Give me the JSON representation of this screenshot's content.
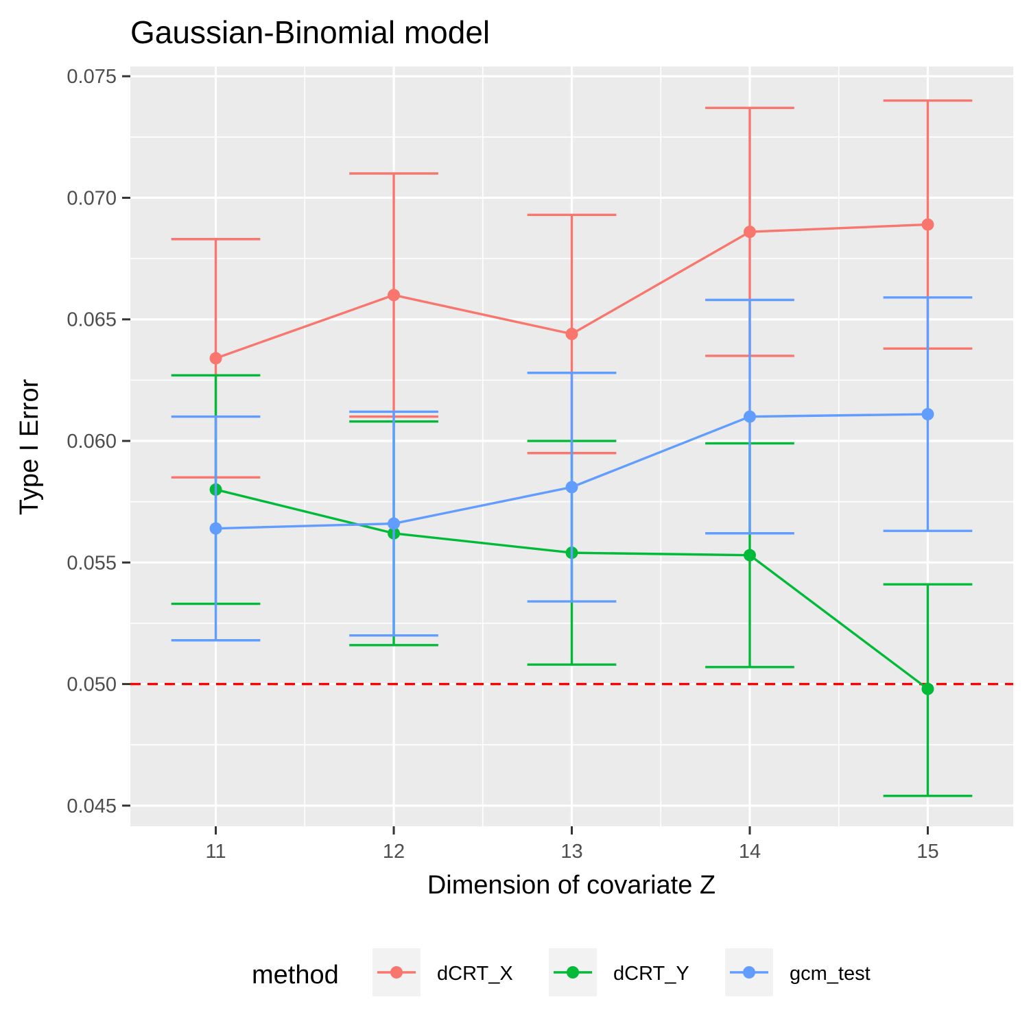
{
  "chart_data": {
    "type": "line",
    "title": "Gaussian-Binomial model",
    "xlabel": "Dimension of covariate Z",
    "ylabel": "Type I Error",
    "x": [
      11,
      12,
      13,
      14,
      15
    ],
    "x_ticks": [
      "11",
      "12",
      "13",
      "14",
      "15"
    ],
    "xlim": [
      10.52,
      15.48
    ],
    "ylim": [
      0.04415,
      0.0754
    ],
    "y_ticks": [
      0.045,
      0.05,
      0.055,
      0.06,
      0.065,
      0.07,
      0.075
    ],
    "y_tick_labels": [
      "0.045",
      "0.050",
      "0.055",
      "0.060",
      "0.065",
      "0.070",
      "0.075"
    ],
    "grid": true,
    "error_bars": true,
    "reference_line": {
      "y": 0.05,
      "color": "#ff0000",
      "style": "dashed"
    },
    "legend": {
      "title": "method",
      "position": "bottom",
      "entries": [
        "dCRT_X",
        "dCRT_Y",
        "gcm_test"
      ]
    },
    "series": [
      {
        "name": "dCRT_X",
        "color": "#f8766d",
        "values": [
          0.0634,
          0.066,
          0.0644,
          0.0686,
          0.0689
        ],
        "lower": [
          0.0585,
          0.061,
          0.0595,
          0.0635,
          0.0638
        ],
        "upper": [
          0.0683,
          0.071,
          0.0693,
          0.0737,
          0.074
        ]
      },
      {
        "name": "dCRT_Y",
        "color": "#00ba38",
        "values": [
          0.058,
          0.0562,
          0.0554,
          0.0553,
          0.0498
        ],
        "lower": [
          0.0533,
          0.0516,
          0.0508,
          0.0507,
          0.0454
        ],
        "upper": [
          0.0627,
          0.0608,
          0.06,
          0.0599,
          0.0541
        ]
      },
      {
        "name": "gcm_test",
        "color": "#619cff",
        "values": [
          0.0564,
          0.0566,
          0.0581,
          0.061,
          0.0611
        ],
        "lower": [
          0.0518,
          0.052,
          0.0534,
          0.0562,
          0.0563
        ],
        "upper": [
          0.061,
          0.0612,
          0.0628,
          0.0658,
          0.0659
        ]
      }
    ]
  }
}
